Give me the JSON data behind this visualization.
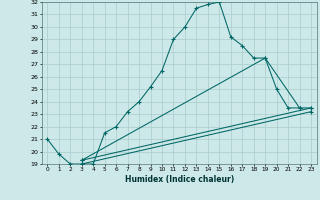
{
  "xlabel": "Humidex (Indice chaleur)",
  "background_color": "#cde8e8",
  "grid_color": "#aacccc",
  "line_color": "#006666",
  "xlim": [
    -0.5,
    23.5
  ],
  "ylim": [
    19,
    32
  ],
  "xticks": [
    0,
    1,
    2,
    3,
    4,
    5,
    6,
    7,
    8,
    9,
    10,
    11,
    12,
    13,
    14,
    15,
    16,
    17,
    18,
    19,
    20,
    21,
    22,
    23
  ],
  "yticks": [
    19,
    20,
    21,
    22,
    23,
    24,
    25,
    26,
    27,
    28,
    29,
    30,
    31,
    32
  ],
  "line1_x": [
    0,
    1,
    2,
    3,
    4,
    5,
    6,
    7,
    8,
    9,
    10,
    11,
    12,
    13,
    14,
    15,
    16,
    17,
    18,
    19,
    20,
    21,
    22,
    23
  ],
  "line1_y": [
    21.0,
    19.8,
    19.0,
    19.0,
    19.0,
    21.5,
    22.0,
    23.2,
    24.0,
    25.2,
    26.5,
    29.0,
    30.0,
    31.5,
    31.8,
    32.0,
    29.2,
    28.5,
    27.5,
    27.5,
    25.0,
    23.5,
    23.5,
    23.5
  ],
  "line2_x": [
    3,
    23
  ],
  "line2_y": [
    19.3,
    23.5
  ],
  "line3_x": [
    3,
    19,
    22
  ],
  "line3_y": [
    19.3,
    27.5,
    23.5
  ],
  "line4_x": [
    3,
    23
  ],
  "line4_y": [
    19.0,
    23.2
  ]
}
